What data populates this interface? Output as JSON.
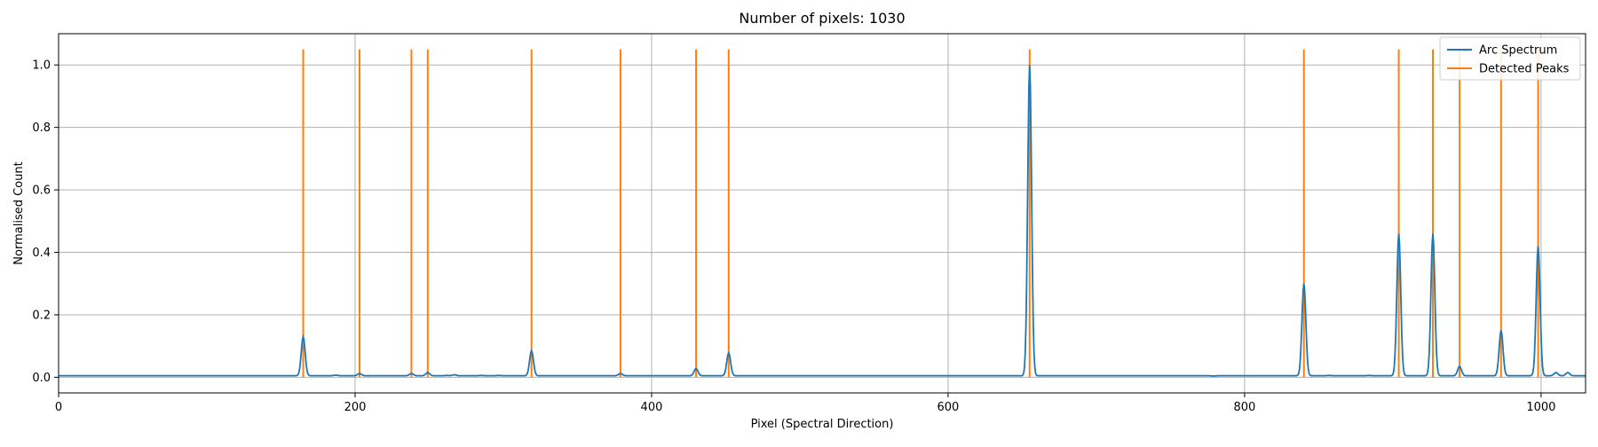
{
  "chart_data": {
    "type": "line",
    "title": "Number of pixels: 1030",
    "xlabel": "Pixel (Spectral Direction)",
    "ylabel": "Normalised Count",
    "xlim": [
      0,
      1030
    ],
    "ylim": [
      -0.05,
      1.1
    ],
    "xticks": [
      0,
      200,
      400,
      600,
      800,
      1000
    ],
    "yticks": [
      0.0,
      0.2,
      0.4,
      0.6,
      0.8,
      1.0
    ],
    "grid": true,
    "legend_position": "top-right",
    "colors": {
      "spectrum": "#1f77b4",
      "peaks": "#ff7f0e",
      "grid": "#b0b0b0"
    },
    "series": [
      {
        "name": "Arc Spectrum",
        "baseline": 0.005,
        "line_width_sigma": 1.3,
        "peaks": [
          {
            "x": 165,
            "y": 0.13
          },
          {
            "x": 187,
            "y": 0.007
          },
          {
            "x": 203,
            "y": 0.012
          },
          {
            "x": 238,
            "y": 0.012
          },
          {
            "x": 249,
            "y": 0.015
          },
          {
            "x": 262,
            "y": 0.006
          },
          {
            "x": 267,
            "y": 0.008
          },
          {
            "x": 285,
            "y": 0.006
          },
          {
            "x": 297,
            "y": 0.006
          },
          {
            "x": 319,
            "y": 0.085
          },
          {
            "x": 379,
            "y": 0.012
          },
          {
            "x": 430,
            "y": 0.028
          },
          {
            "x": 452,
            "y": 0.078
          },
          {
            "x": 655,
            "y": 1.0
          },
          {
            "x": 692,
            "y": 0.005
          },
          {
            "x": 779,
            "y": 0.004
          },
          {
            "x": 840,
            "y": 0.3
          },
          {
            "x": 857,
            "y": 0.006
          },
          {
            "x": 884,
            "y": 0.006
          },
          {
            "x": 904,
            "y": 0.46
          },
          {
            "x": 927,
            "y": 0.46
          },
          {
            "x": 945,
            "y": 0.035
          },
          {
            "x": 973,
            "y": 0.15
          },
          {
            "x": 998,
            "y": 0.42
          },
          {
            "x": 1010,
            "y": 0.015
          },
          {
            "x": 1018,
            "y": 0.015
          }
        ]
      },
      {
        "name": "Detected Peaks",
        "x": [
          165,
          203,
          238,
          249,
          319,
          379,
          430,
          452,
          655,
          840,
          904,
          927,
          945,
          973,
          998
        ],
        "y_range": [
          0.0,
          1.05
        ]
      }
    ]
  }
}
